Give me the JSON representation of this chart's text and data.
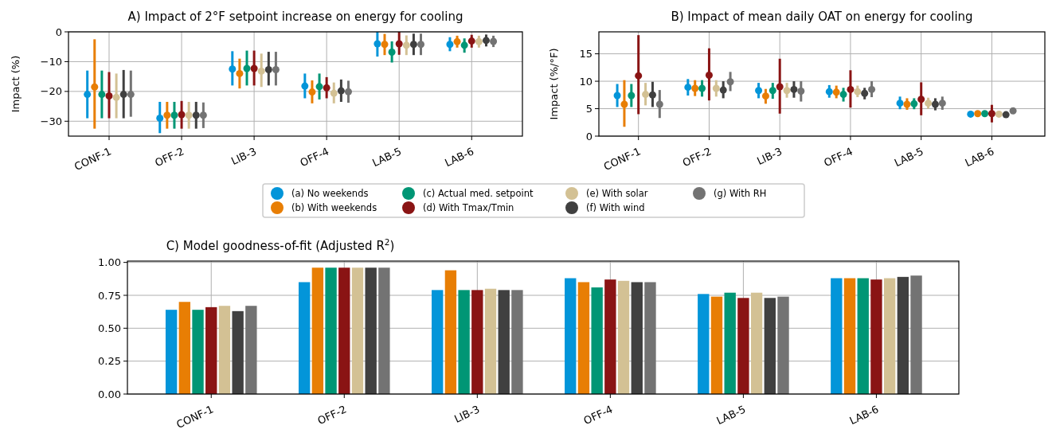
{
  "chart_data": [
    {
      "type": "scatter",
      "title": "A) Impact of 2°F setpoint increase on energy for cooling",
      "ylabel": "Impact (%)",
      "categories": [
        "CONF-1",
        "OFF-2",
        "LIB-3",
        "OFF-4",
        "LAB-5",
        "LAB-6"
      ],
      "ylim": [
        -35,
        0
      ],
      "yticks": [
        {
          "value": -30,
          "label": "−30"
        },
        {
          "value": -20,
          "label": "−20"
        },
        {
          "value": -10,
          "label": "−10"
        },
        0
      ],
      "grid": true,
      "marker": "circle",
      "legend": "bottom",
      "series": [
        {
          "name": "(a) No weekends",
          "color": "#0395d9",
          "values": [
            -21,
            -29,
            -12.5,
            -18.2,
            -4,
            -4.2
          ],
          "errors": [
            [
              -29,
              -13
            ],
            [
              -34,
              -23.5
            ],
            [
              -18,
              -6.5
            ],
            [
              -22.3,
              -14
            ],
            [
              -8.3,
              0
            ],
            [
              -6.5,
              -1.8
            ]
          ]
        },
        {
          "name": "(b) With weekends",
          "color": "#e87e04",
          "values": [
            -18.5,
            -28,
            -14,
            -20.2,
            -4.2,
            -3.3
          ],
          "errors": [
            [
              -32.5,
              -2.5
            ],
            [
              -32.5,
              -23.5
            ],
            [
              -19,
              -9
            ],
            [
              -24,
              -16.3
            ],
            [
              -7.8,
              -0.7
            ],
            [
              -5.3,
              -1.3
            ]
          ]
        },
        {
          "name": "(c) Actual med. setpoint",
          "color": "#009675",
          "values": [
            -21,
            -28,
            -12.3,
            -18.4,
            -6.8,
            -4.5
          ],
          "errors": [
            [
              -29,
              -13
            ],
            [
              -32.5,
              -23.5
            ],
            [
              -18,
              -6.3
            ],
            [
              -22.7,
              -14
            ],
            [
              -10.3,
              -3.2
            ],
            [
              -7,
              -2.2
            ]
          ]
        },
        {
          "name": "(d) With Tmax/Tmin",
          "color": "#8a1414",
          "values": [
            -21.5,
            -27.8,
            -12.3,
            -18.8,
            -4,
            -3.1
          ],
          "errors": [
            [
              -29,
              -13.5
            ],
            [
              -32.5,
              -23.2
            ],
            [
              -18,
              -6.3
            ],
            [
              -22.3,
              -15.2
            ],
            [
              -7.7,
              0
            ],
            [
              -5.3,
              -1
            ]
          ]
        },
        {
          "name": "(e) With solar",
          "color": "#d3c194",
          "values": [
            -22,
            -28,
            -13.2,
            -20.6,
            -4.5,
            -3.3
          ],
          "errors": [
            [
              -29,
              -14
            ],
            [
              -32.5,
              -23.5
            ],
            [
              -18.5,
              -7.3
            ],
            [
              -24,
              -17
            ],
            [
              -7.8,
              -1.2
            ],
            [
              -5.3,
              -1.3
            ]
          ]
        },
        {
          "name": "(f) With wind",
          "color": "#404040",
          "values": [
            -21,
            -28,
            -12.7,
            -19.8,
            -4.2,
            -2.9
          ],
          "errors": [
            [
              -29,
              -12.8
            ],
            [
              -32.5,
              -23.5
            ],
            [
              -18,
              -6.7
            ],
            [
              -23.5,
              -16
            ],
            [
              -7.8,
              -0.6
            ],
            [
              -4.9,
              -0.9
            ]
          ]
        },
        {
          "name": "(g) With RH",
          "color": "#737373",
          "values": [
            -21,
            -28,
            -12.7,
            -20.1,
            -4.2,
            -3.2
          ],
          "errors": [
            [
              -28.5,
              -13
            ],
            [
              -32.3,
              -23.7
            ],
            [
              -18,
              -6.7
            ],
            [
              -23.8,
              -16.4
            ],
            [
              -7.8,
              -0.6
            ],
            [
              -5.1,
              -1.3
            ]
          ]
        }
      ]
    },
    {
      "type": "scatter",
      "title": "B) Impact of mean daily OAT on energy for cooling",
      "ylabel": "Impact (%/°F)",
      "categories": [
        "CONF-1",
        "OFF-2",
        "LIB-3",
        "OFF-4",
        "LAB-5",
        "LAB-6"
      ],
      "ylim": [
        0,
        19
      ],
      "yticks": [
        0,
        5,
        10,
        15
      ],
      "grid": true,
      "marker": "circle",
      "series": [
        {
          "color": "#0395d9",
          "values": [
            7.4,
            8.9,
            8.3,
            8.1,
            6,
            4
          ],
          "errors": [
            [
              5.3,
              9.5
            ],
            [
              7.4,
              10.4
            ],
            [
              6.9,
              9.7
            ],
            [
              7,
              9.3
            ],
            [
              4.9,
              7.2
            ],
            [
              3.8,
              4.2
            ]
          ]
        },
        {
          "color": "#e87e04",
          "values": [
            5.8,
            8.7,
            7.3,
            8,
            5.8,
            4.1
          ],
          "errors": [
            [
              1.7,
              10.2
            ],
            [
              7.3,
              10.2
            ],
            [
              5.9,
              8.6
            ],
            [
              6.9,
              9.2
            ],
            [
              4.8,
              6.9
            ],
            [
              3.9,
              4.3
            ]
          ]
        },
        {
          "color": "#009675",
          "values": [
            7.4,
            8.7,
            8.3,
            7.6,
            5.9,
            4.1
          ],
          "errors": [
            [
              5.3,
              9.5
            ],
            [
              7.2,
              10.2
            ],
            [
              6.8,
              9.7
            ],
            [
              6.3,
              8.8
            ],
            [
              4.9,
              6.9
            ],
            [
              3.9,
              4.3
            ]
          ]
        },
        {
          "color": "#8a1414",
          "values": [
            11,
            11.1,
            9,
            8.5,
            6.7,
            4.1
          ],
          "errors": [
            [
              4,
              18.4
            ],
            [
              6.5,
              16
            ],
            [
              4.1,
              14.1
            ],
            [
              5.2,
              12
            ],
            [
              3.8,
              9.8
            ],
            [
              2.5,
              5.7
            ]
          ]
        },
        {
          "color": "#d3c194",
          "values": [
            7.6,
            8.7,
            8.3,
            8.1,
            6,
            4
          ],
          "errors": [
            [
              5.6,
              9.7
            ],
            [
              7.2,
              10.2
            ],
            [
              7,
              9.7
            ],
            [
              7.1,
              9.2
            ],
            [
              5,
              7
            ],
            [
              3.8,
              4.2
            ]
          ]
        },
        {
          "color": "#404040",
          "values": [
            7.5,
            8.4,
            8.5,
            7.8,
            5.8,
            3.9
          ],
          "errors": [
            [
              5.3,
              9.9
            ],
            [
              6.9,
              10
            ],
            [
              7,
              10
            ],
            [
              6.7,
              8.8
            ],
            [
              4.7,
              6.9
            ],
            [
              3.7,
              4.1
            ]
          ]
        },
        {
          "color": "#737373",
          "values": [
            5.8,
            9.9,
            8.2,
            8.5,
            6,
            4.6
          ],
          "errors": [
            [
              3.3,
              8.4
            ],
            [
              8.2,
              11.7
            ],
            [
              6.3,
              10
            ],
            [
              7.1,
              10
            ],
            [
              4.8,
              7.2
            ],
            [
              4.2,
              5.1
            ]
          ]
        }
      ]
    },
    {
      "type": "bar",
      "title": "C) Model goodness-of-fit (Adjusted R$^{2}$)",
      "categories": [
        "CONF-1",
        "OFF-2",
        "LIB-3",
        "OFF-4",
        "LAB-5",
        "LAB-6"
      ],
      "ylim": [
        0,
        1.01
      ],
      "yticks": [
        {
          "value": 0,
          "label": "0.00"
        },
        {
          "value": 0.25,
          "label": "0.25"
        },
        {
          "value": 0.5,
          "label": "0.50"
        },
        {
          "value": 0.75,
          "label": "0.75"
        },
        {
          "value": 1,
          "label": "1.00"
        }
      ],
      "grid": true,
      "series": [
        {
          "color": "#0395d9",
          "values": [
            0.64,
            0.85,
            0.79,
            0.88,
            0.76,
            0.88
          ]
        },
        {
          "color": "#e87e04",
          "values": [
            0.7,
            0.96,
            0.94,
            0.85,
            0.74,
            0.88
          ]
        },
        {
          "color": "#009675",
          "values": [
            0.64,
            0.96,
            0.79,
            0.81,
            0.77,
            0.88
          ]
        },
        {
          "color": "#8a1414",
          "values": [
            0.66,
            0.96,
            0.79,
            0.87,
            0.73,
            0.87
          ]
        },
        {
          "color": "#d3c194",
          "values": [
            0.67,
            0.96,
            0.8,
            0.86,
            0.77,
            0.88
          ]
        },
        {
          "color": "#404040",
          "values": [
            0.63,
            0.96,
            0.79,
            0.85,
            0.73,
            0.89
          ]
        },
        {
          "color": "#737373",
          "values": [
            0.67,
            0.96,
            0.79,
            0.85,
            0.74,
            0.9
          ]
        }
      ]
    }
  ]
}
